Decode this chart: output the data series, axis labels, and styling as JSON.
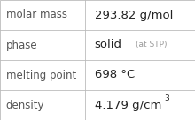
{
  "rows": [
    {
      "label": "molar mass",
      "value": "293.82 g/mol",
      "type": "simple"
    },
    {
      "label": "phase",
      "value": "solid",
      "type": "phase",
      "suffix": "(at STP)"
    },
    {
      "label": "melting point",
      "value": "698 °C",
      "type": "simple"
    },
    {
      "label": "density",
      "value": "4.179 g/cm",
      "type": "density",
      "super": "3"
    }
  ],
  "bg_color": "#ffffff",
  "border_color": "#bbbbbb",
  "label_color": "#555555",
  "value_color": "#222222",
  "suffix_color": "#999999",
  "label_fontsize": 8.5,
  "value_fontsize": 9.5,
  "suffix_fontsize": 6.5,
  "super_fontsize": 6.5,
  "col_split": 0.435,
  "fig_width": 2.2,
  "fig_height": 1.36,
  "dpi": 100
}
